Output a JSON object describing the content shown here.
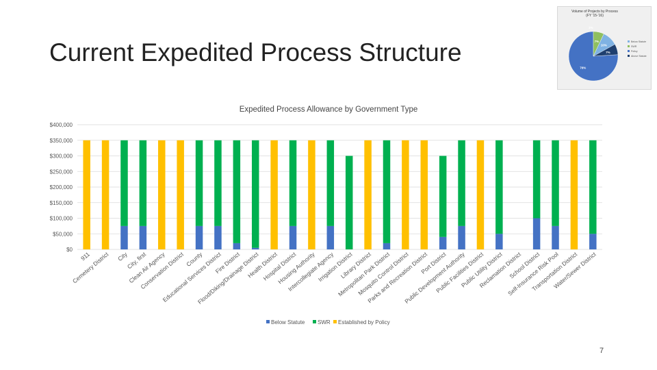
{
  "slide": {
    "title": "Current Expedited Process Structure",
    "page_number": "7"
  },
  "colors": {
    "below_statute": "#4472c4",
    "swr": "#00b050",
    "established_by_policy": "#ffc000",
    "grid": "#d9d9d9"
  },
  "chart_data": [
    {
      "type": "bar",
      "stacked": true,
      "title": "Expedited Process Allowance by Government Type",
      "xlabel": "",
      "ylabel": "",
      "ylim": [
        0,
        400000
      ],
      "y_ticks": [
        0,
        50000,
        100000,
        150000,
        200000,
        250000,
        300000,
        350000,
        400000
      ],
      "y_tick_labels": [
        "$0",
        "$50,000",
        "$100,000",
        "$150,000",
        "$200,000",
        "$250,000",
        "$300,000",
        "$350,000",
        "$400,000"
      ],
      "grid": true,
      "legend_position": "bottom",
      "categories": [
        "911",
        "Cemetery District",
        "City",
        "City, first",
        "Clean Air Agency",
        "Conservation District",
        "County",
        "Educational Services District",
        "Fire District",
        "Flood/Diking/Drainage District",
        "Health District",
        "Hospital District",
        "Housing Authority",
        "Intercollegiate Agency",
        "Irrigation District",
        "Library District",
        "Metropolitan Park District",
        "Mosquito Control District",
        "Parks and Recreation District",
        "Port District",
        "Public Development Authority",
        "Public Facilities District",
        "Public Utility District",
        "Reclamation District",
        "School District",
        "Self-Insurance Risk Pool",
        "Transportation District",
        "Water/Sewer District"
      ],
      "series": [
        {
          "name": "Below Statute",
          "values": [
            0,
            0,
            75000,
            75000,
            0,
            0,
            75000,
            75000,
            20000,
            5000,
            0,
            75000,
            0,
            75000,
            0,
            0,
            20000,
            0,
            0,
            40000,
            75000,
            0,
            50000,
            0,
            100000,
            75000,
            0,
            50000
          ]
        },
        {
          "name": "SWR",
          "values": [
            0,
            0,
            275000,
            275000,
            0,
            0,
            275000,
            275000,
            330000,
            345000,
            0,
            275000,
            0,
            275000,
            300000,
            0,
            330000,
            0,
            0,
            260000,
            275000,
            0,
            300000,
            0,
            250000,
            275000,
            0,
            300000
          ]
        },
        {
          "name": "Established by Policy",
          "values": [
            350000,
            350000,
            0,
            0,
            350000,
            350000,
            0,
            0,
            0,
            0,
            350000,
            0,
            350000,
            0,
            0,
            350000,
            0,
            350000,
            350000,
            0,
            0,
            350000,
            0,
            0,
            0,
            0,
            350000,
            0
          ]
        }
      ]
    },
    {
      "type": "pie",
      "title": "Volume of Projects by Process",
      "subtitle": "(FY '15-'16)",
      "slices": [
        {
          "name": "Established by Policy",
          "value": 76,
          "label": "76%",
          "color": "#4472c4"
        },
        {
          "name": "SWR",
          "value": 7,
          "label": "7%",
          "color": "#8fbf5f"
        },
        {
          "name": "Below Statute",
          "value": 10,
          "label": "10%",
          "color": "#7fb2e3"
        },
        {
          "name": "Other",
          "value": 7,
          "label": "7%",
          "color": "#1f3f6f"
        }
      ],
      "top_label": "1%",
      "legend": [
        "Below Statute",
        "SWR",
        "Policy",
        "Above Statute"
      ]
    }
  ]
}
